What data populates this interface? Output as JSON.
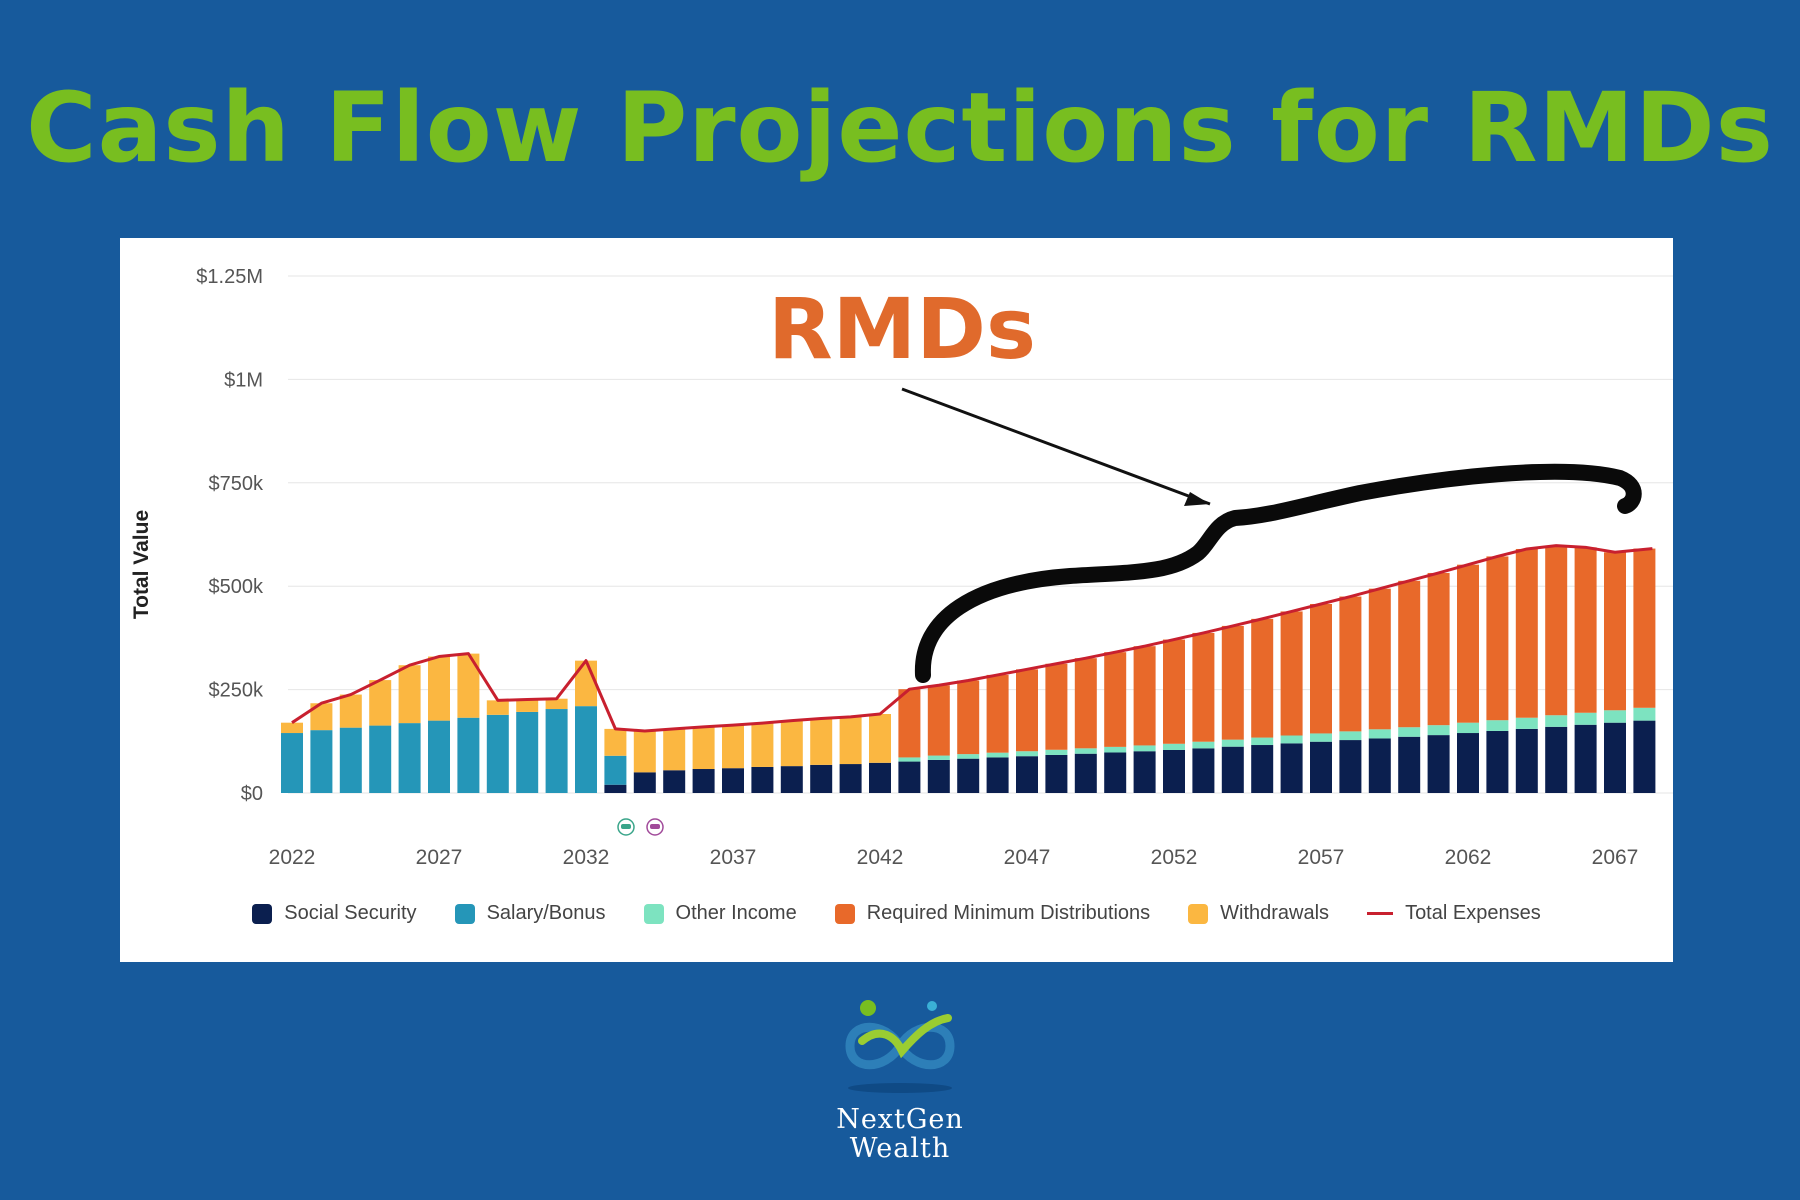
{
  "title": "Cash Flow Projections for RMDs",
  "annotation": {
    "label": "RMDs"
  },
  "logo": {
    "line1": "NextGen",
    "line2": "Wealth"
  },
  "chart_data": {
    "type": "bar",
    "stacked": true,
    "title": "",
    "xlabel": "",
    "ylabel": "Total Value",
    "ylim": [
      0,
      1250000
    ],
    "y_ticks": [
      {
        "value": 0,
        "label": "$0"
      },
      {
        "value": 250000,
        "label": "$250k"
      },
      {
        "value": 500000,
        "label": "$500k"
      },
      {
        "value": 750000,
        "label": "$750k"
      },
      {
        "value": 1000000,
        "label": "$1M"
      },
      {
        "value": 1250000,
        "label": "$1.25M"
      }
    ],
    "x_tick_labels": [
      "2022",
      "2027",
      "2032",
      "2037",
      "2042",
      "2047",
      "2052",
      "2057",
      "2062",
      "2067"
    ],
    "legend_position": "bottom",
    "grid": true,
    "x": [
      2022,
      2023,
      2024,
      2025,
      2026,
      2027,
      2028,
      2029,
      2030,
      2031,
      2032,
      2033,
      2034,
      2035,
      2036,
      2037,
      2038,
      2039,
      2040,
      2041,
      2042,
      2043,
      2044,
      2045,
      2046,
      2047,
      2048,
      2049,
      2050,
      2051,
      2052,
      2053,
      2054,
      2055,
      2056,
      2057,
      2058,
      2059,
      2060,
      2061,
      2062,
      2063,
      2064,
      2065,
      2066,
      2067,
      2068
    ],
    "series": [
      {
        "name": "Social Security",
        "color": "#0b1f4f",
        "values": [
          0,
          0,
          0,
          0,
          0,
          0,
          0,
          0,
          0,
          0,
          0,
          20000,
          50000,
          55000,
          58000,
          60000,
          63000,
          65000,
          68000,
          70000,
          73000,
          76000,
          80000,
          83000,
          86000,
          89000,
          92000,
          95000,
          98000,
          101000,
          104000,
          108000,
          112000,
          116000,
          120000,
          124000,
          128000,
          132000,
          136000,
          140000,
          145000,
          150000,
          155000,
          160000,
          165000,
          170000,
          175000
        ]
      },
      {
        "name": "Salary/Bonus",
        "color": "#2596b8",
        "values": [
          145000,
          152000,
          158000,
          163000,
          169000,
          175000,
          182000,
          189000,
          196000,
          203000,
          210000,
          70000,
          0,
          0,
          0,
          0,
          0,
          0,
          0,
          0,
          0,
          0,
          0,
          0,
          0,
          0,
          0,
          0,
          0,
          0,
          0,
          0,
          0,
          0,
          0,
          0,
          0,
          0,
          0,
          0,
          0,
          0,
          0,
          0,
          0,
          0,
          0
        ]
      },
      {
        "name": "Other Income",
        "color": "#7de3c0",
        "values": [
          0,
          0,
          0,
          0,
          0,
          0,
          0,
          0,
          0,
          0,
          0,
          0,
          0,
          0,
          0,
          0,
          0,
          0,
          0,
          0,
          0,
          10000,
          10500,
          11000,
          11500,
          12000,
          12500,
          13000,
          13500,
          14000,
          15000,
          16000,
          17000,
          18000,
          19000,
          20000,
          21000,
          22000,
          23000,
          24000,
          25000,
          26000,
          27000,
          28000,
          29000,
          30000,
          31000
        ]
      },
      {
        "name": "Required Minimum Distributions",
        "color": "#e8692a",
        "values": [
          0,
          0,
          0,
          0,
          0,
          0,
          0,
          0,
          0,
          0,
          0,
          0,
          0,
          0,
          0,
          0,
          0,
          0,
          0,
          0,
          0,
          165000,
          170000,
          178000,
          188000,
          198000,
          208000,
          218000,
          229000,
          240000,
          252000,
          263000,
          275000,
          287000,
          300000,
          313000,
          326000,
          340000,
          354000,
          368000,
          382000,
          396000,
          408000,
          410000,
          400000,
          382000,
          385000
        ]
      },
      {
        "name": "Withdrawals",
        "color": "#fbb741",
        "values": [
          25000,
          65000,
          80000,
          110000,
          140000,
          155000,
          155000,
          35000,
          30000,
          25000,
          110000,
          65000,
          100000,
          100000,
          102000,
          104000,
          106000,
          110000,
          112000,
          114000,
          118000,
          0,
          0,
          0,
          0,
          0,
          0,
          0,
          0,
          0,
          0,
          0,
          0,
          0,
          0,
          0,
          0,
          0,
          0,
          0,
          0,
          0,
          0,
          0,
          0,
          0,
          0
        ]
      }
    ],
    "line_series": {
      "name": "Total Expenses",
      "color": "#c8202f",
      "values": [
        170000,
        217000,
        238000,
        273000,
        309000,
        330000,
        337000,
        224000,
        226000,
        228000,
        320000,
        155000,
        150000,
        155000,
        160000,
        164000,
        169000,
        175000,
        180000,
        184000,
        191000,
        251000,
        260500,
        272000,
        285500,
        299000,
        312500,
        326000,
        340500,
        355000,
        371000,
        387000,
        404000,
        421000,
        439000,
        457000,
        475000,
        494000,
        513000,
        532000,
        552000,
        572000,
        590000,
        598000,
        594000,
        582000,
        591000
      ]
    }
  }
}
